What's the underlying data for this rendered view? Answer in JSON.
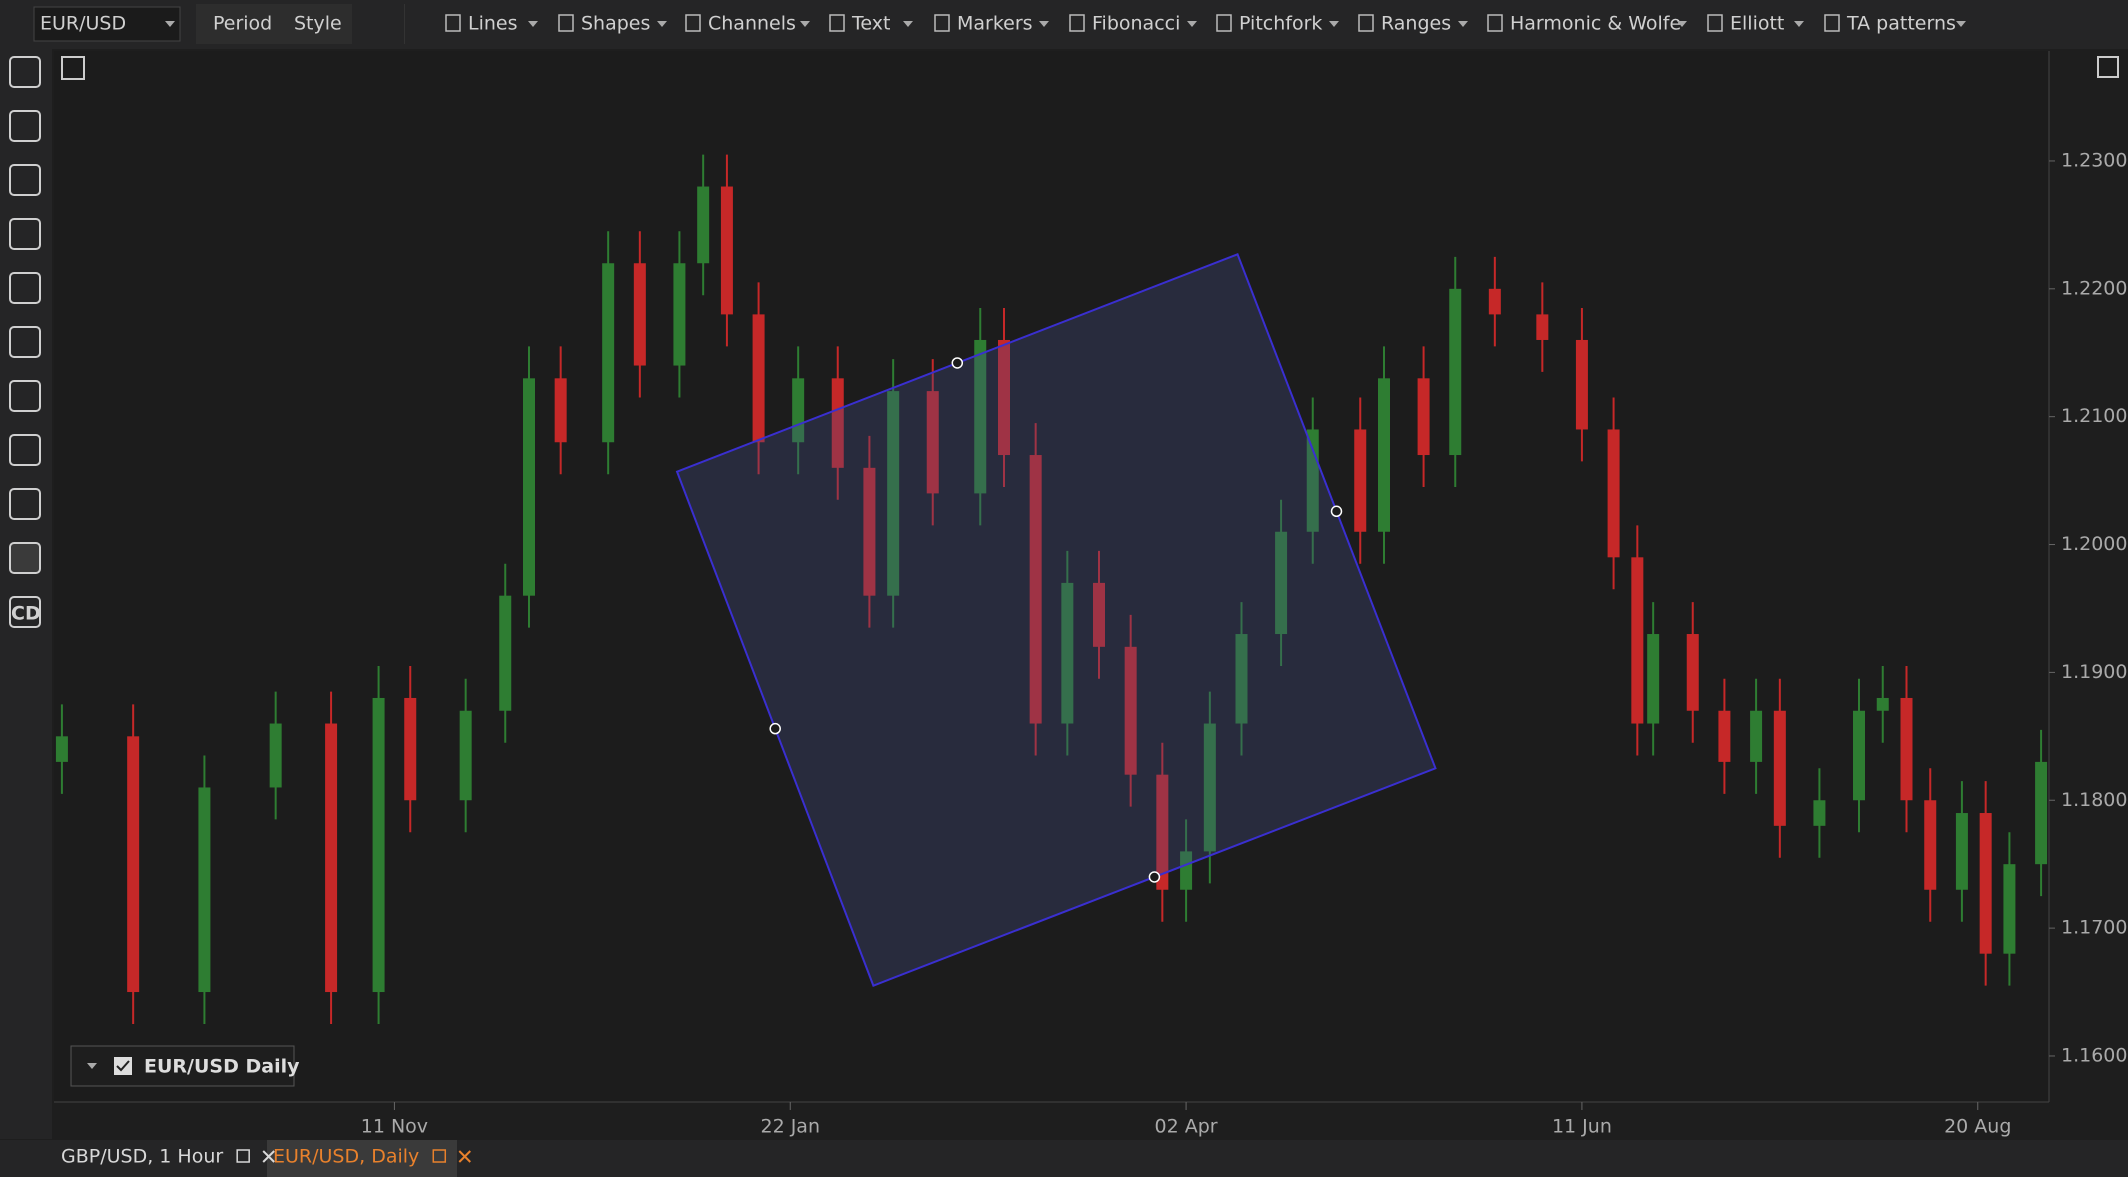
{
  "toolbar": {
    "symbol": "EUR/USD",
    "buttons": [
      "Period",
      "Style"
    ],
    "tools": [
      "Lines",
      "Shapes",
      "Channels",
      "Text",
      "Markers",
      "Fibonacci",
      "Pitchfork",
      "Ranges",
      "Harmonic & Wolfe",
      "Elliott",
      "TA patterns"
    ]
  },
  "sidebar": {
    "cd": "CD"
  },
  "tabs": [
    {
      "label": "GBP/USD, 1 Hour"
    },
    {
      "label": "EUR/USD, Daily"
    }
  ],
  "chart_data": {
    "type": "candlestick",
    "legend": "EUR/USD Daily",
    "up_color": "#2e7d32",
    "down_color": "#c62828",
    "grid": false,
    "xlim": [
      0,
      252
    ],
    "xticks": [
      {
        "value": 43,
        "label": "11 Nov"
      },
      {
        "value": 93,
        "label": "22 Jan"
      },
      {
        "value": 143,
        "label": "02 Apr"
      },
      {
        "value": 193,
        "label": "11 Jun"
      },
      {
        "value": 243,
        "label": "20 Aug"
      }
    ],
    "ylim": [
      1.1564,
      1.2386
    ],
    "yticks": [
      {
        "value": 1.16,
        "label": "1.16000"
      },
      {
        "value": 1.17,
        "label": "1.17000"
      },
      {
        "value": 1.18,
        "label": "1.18000"
      },
      {
        "value": 1.19,
        "label": "1.19000"
      },
      {
        "value": 1.2,
        "label": "1.20000"
      },
      {
        "value": 1.21,
        "label": "1.21000"
      },
      {
        "value": 1.22,
        "label": "1.22000"
      },
      {
        "value": 1.23,
        "label": "1.23000"
      }
    ],
    "x": [
      1,
      10,
      19,
      28,
      35,
      41,
      45,
      52,
      57,
      60,
      64,
      70,
      74,
      79,
      82,
      85,
      89,
      94,
      99,
      103,
      106,
      111,
      117,
      120,
      124,
      128,
      132,
      136,
      140,
      143,
      146,
      150,
      155,
      159,
      165,
      168,
      173,
      177,
      182,
      188,
      193,
      197,
      200,
      202,
      207,
      211,
      215,
      218,
      223,
      228,
      231,
      234,
      237,
      241,
      244,
      247,
      251
    ],
    "open": [
      1.183,
      1.185,
      1.165,
      1.181,
      1.186,
      1.165,
      1.188,
      1.18,
      1.187,
      1.196,
      1.213,
      1.208,
      1.222,
      1.214,
      1.222,
      1.228,
      1.218,
      1.208,
      1.213,
      1.206,
      1.196,
      1.212,
      1.204,
      1.216,
      1.207,
      1.186,
      1.197,
      1.192,
      1.182,
      1.173,
      1.176,
      1.186,
      1.193,
      1.201,
      1.209,
      1.201,
      1.213,
      1.207,
      1.22,
      1.218,
      1.216,
      1.209,
      1.199,
      1.186,
      1.193,
      1.187,
      1.183,
      1.187,
      1.178,
      1.18,
      1.187,
      1.188,
      1.18,
      1.173,
      1.179,
      1.168,
      1.175
    ],
    "high": [
      1.1875,
      1.1875,
      1.1835,
      1.1885,
      1.1885,
      1.1905,
      1.1905,
      1.1895,
      1.1985,
      1.2155,
      1.2155,
      1.2245,
      1.2245,
      1.2245,
      1.2305,
      1.2305,
      1.2205,
      1.2155,
      1.2155,
      1.2085,
      1.2145,
      1.2145,
      1.2185,
      1.2185,
      1.2095,
      1.1995,
      1.1995,
      1.1945,
      1.1845,
      1.1785,
      1.1885,
      1.1955,
      1.2035,
      1.2115,
      1.2115,
      1.2155,
      1.2155,
      1.2225,
      1.2225,
      1.2205,
      1.2185,
      1.2115,
      1.2015,
      1.1955,
      1.1955,
      1.1895,
      1.1895,
      1.1895,
      1.1825,
      1.1895,
      1.1905,
      1.1905,
      1.1825,
      1.1815,
      1.1815,
      1.1775,
      1.1855
    ],
    "low": [
      1.1805,
      1.1625,
      1.1625,
      1.1785,
      1.1625,
      1.1625,
      1.1775,
      1.1775,
      1.1845,
      1.1935,
      1.2055,
      1.2055,
      1.2115,
      1.2115,
      1.2195,
      1.2155,
      1.2055,
      1.2055,
      1.2035,
      1.1935,
      1.1935,
      1.2015,
      1.2015,
      1.2045,
      1.1835,
      1.1835,
      1.1895,
      1.1795,
      1.1705,
      1.1705,
      1.1735,
      1.1835,
      1.1905,
      1.1985,
      1.1985,
      1.1985,
      1.2045,
      1.2045,
      1.2155,
      1.2135,
      1.2065,
      1.1965,
      1.1835,
      1.1835,
      1.1845,
      1.1805,
      1.1805,
      1.1755,
      1.1755,
      1.1775,
      1.1845,
      1.1775,
      1.1705,
      1.1705,
      1.1655,
      1.1655,
      1.1725
    ],
    "close": [
      1.185,
      1.165,
      1.181,
      1.186,
      1.165,
      1.188,
      1.18,
      1.187,
      1.196,
      1.213,
      1.208,
      1.222,
      1.214,
      1.222,
      1.228,
      1.218,
      1.208,
      1.213,
      1.206,
      1.196,
      1.212,
      1.204,
      1.216,
      1.207,
      1.186,
      1.197,
      1.192,
      1.182,
      1.173,
      1.176,
      1.186,
      1.193,
      1.201,
      1.209,
      1.201,
      1.213,
      1.207,
      1.22,
      1.218,
      1.216,
      1.209,
      1.199,
      1.186,
      1.193,
      1.187,
      1.183,
      1.187,
      1.178,
      1.18,
      1.187,
      1.188,
      1.18,
      1.173,
      1.179,
      1.168,
      1.175,
      1.183
    ],
    "drawing": {
      "points": [
        [
          78.7,
          1.2057
        ],
        [
          149.5,
          1.2227
        ],
        [
          174.5,
          1.1825
        ],
        [
          103.5,
          1.1655
        ]
      ]
    }
  }
}
